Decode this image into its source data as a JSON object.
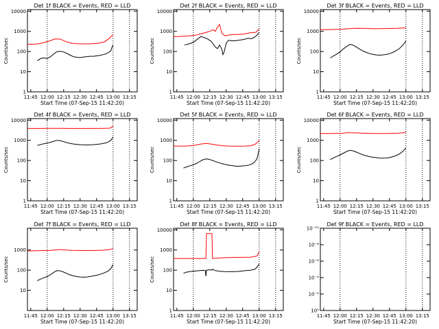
{
  "chart_data": [
    {
      "type": "line",
      "title": "Det 1f BLACK = Events, RED = LLD",
      "xlabel": "Start Time (07-Sep-15 11:42:20)",
      "ylabel": "Counts/sec",
      "xlim": [
        0,
        100
      ],
      "ylim": [
        1,
        12000
      ],
      "yscale": "log",
      "xticks": [
        3,
        18,
        33,
        48,
        63,
        78,
        93
      ],
      "xtick_labels": [
        "11:45",
        "12:00",
        "12:15",
        "12:30",
        "12:45",
        "13:00",
        "13:15"
      ],
      "yticks": [
        1,
        10,
        100,
        1000,
        10000
      ],
      "ytick_labels": [
        "1",
        "10",
        "100",
        "1000",
        "10000"
      ],
      "vlines": [
        18,
        78,
        93
      ],
      "series": [
        {
          "color": "#ff0000",
          "x": [
            0,
            5,
            10,
            15,
            20,
            25,
            30,
            35,
            40,
            45,
            50,
            55,
            60,
            65,
            70,
            74,
            76,
            78
          ],
          "y": [
            230,
            230,
            240,
            280,
            330,
            420,
            410,
            310,
            260,
            245,
            240,
            240,
            245,
            260,
            300,
            420,
            540,
            700
          ]
        },
        {
          "color": "#000000",
          "x": [
            9,
            12,
            15,
            18,
            21,
            24,
            27,
            30,
            33,
            36,
            39,
            42,
            45,
            48,
            51,
            54,
            57,
            60,
            63,
            66,
            69,
            72,
            74,
            76,
            77,
            78
          ],
          "y": [
            35,
            45,
            48,
            45,
            55,
            75,
            98,
            102,
            95,
            80,
            66,
            55,
            52,
            50,
            53,
            56,
            58,
            58,
            61,
            64,
            70,
            78,
            90,
            110,
            160,
            210
          ]
        }
      ]
    },
    {
      "type": "line",
      "title": "Det 2f BLACK = Events, RED = LLD",
      "xlabel": "Start Time (07-Sep-15 11:42:20)",
      "ylabel": "Counts/sec",
      "xlim": [
        0,
        100
      ],
      "ylim": [
        1,
        12000
      ],
      "yscale": "log",
      "xticks": [
        3,
        18,
        33,
        48,
        63,
        78,
        93
      ],
      "xtick_labels": [
        "11:45",
        "12:00",
        "12:15",
        "12:30",
        "12:45",
        "13:00",
        "13:15"
      ],
      "yticks": [
        1,
        10,
        100,
        1000,
        10000
      ],
      "ytick_labels": [
        "1",
        "10",
        "100",
        "1000",
        "10000"
      ],
      "vlines": [
        18,
        78,
        93
      ],
      "series": [
        {
          "color": "#ff0000",
          "x": [
            0,
            5,
            10,
            15,
            20,
            25,
            30,
            33,
            36,
            38,
            40,
            42,
            44,
            47,
            50,
            55,
            60,
            65,
            70,
            75,
            78
          ],
          "y": [
            550,
            560,
            580,
            600,
            650,
            750,
            900,
            1000,
            1200,
            1000,
            1600,
            2200,
            800,
            600,
            650,
            700,
            700,
            750,
            850,
            900,
            1300
          ]
        },
        {
          "color": "#000000",
          "x": [
            10,
            13,
            16,
            19,
            22,
            25,
            28,
            31,
            34,
            36,
            38,
            40,
            42,
            44,
            45,
            46,
            48,
            50,
            53,
            56,
            59,
            62,
            65,
            68,
            71,
            74,
            76,
            78
          ],
          "y": [
            210,
            230,
            260,
            310,
            420,
            560,
            490,
            420,
            330,
            240,
            170,
            140,
            210,
            130,
            70,
            90,
            260,
            360,
            340,
            340,
            360,
            380,
            410,
            450,
            430,
            520,
            650,
            900
          ]
        }
      ]
    },
    {
      "type": "line",
      "title": "Det 3f BLACK = Events, RED = LLD",
      "xlabel": "Start Time (07-Sep-15 11:42:20)",
      "ylabel": "Counts/sec",
      "xlim": [
        0,
        100
      ],
      "ylim": [
        1,
        12000
      ],
      "yscale": "log",
      "xticks": [
        3,
        18,
        33,
        48,
        63,
        78,
        93
      ],
      "xtick_labels": [
        "11:45",
        "12:00",
        "12:15",
        "12:30",
        "12:45",
        "13:00",
        "13:15"
      ],
      "yticks": [
        1,
        10,
        100,
        1000,
        10000
      ],
      "ytick_labels": [
        "1",
        "10",
        "100",
        "1000",
        "10000"
      ],
      "vlines": [
        18,
        78,
        93
      ],
      "series": [
        {
          "color": "#ff0000",
          "x": [
            0,
            10,
            20,
            25,
            30,
            35,
            40,
            50,
            60,
            70,
            78
          ],
          "y": [
            1200,
            1230,
            1280,
            1350,
            1400,
            1420,
            1400,
            1350,
            1380,
            1420,
            1500
          ]
        },
        {
          "color": "#000000",
          "x": [
            9,
            12,
            15,
            18,
            21,
            24,
            27,
            30,
            33,
            36,
            39,
            42,
            45,
            48,
            51,
            54,
            57,
            60,
            63,
            66,
            69,
            72,
            75,
            77,
            78
          ],
          "y": [
            48,
            60,
            75,
            95,
            135,
            180,
            225,
            205,
            165,
            130,
            105,
            90,
            78,
            72,
            68,
            66,
            68,
            72,
            78,
            90,
            110,
            140,
            200,
            280,
            350
          ]
        }
      ]
    },
    {
      "type": "line",
      "title": "Det 4f BLACK = Events, RED = LLD",
      "xlabel": "Start Time (07-Sep-15 11:42:20)",
      "ylabel": "Counts/sec",
      "xlim": [
        0,
        100
      ],
      "ylim": [
        1,
        12000
      ],
      "yscale": "log",
      "xticks": [
        3,
        18,
        33,
        48,
        63,
        78,
        93
      ],
      "xtick_labels": [
        "11:45",
        "12:00",
        "12:15",
        "12:30",
        "12:45",
        "13:00",
        "13:15"
      ],
      "yticks": [
        1,
        10,
        100,
        1000,
        10000
      ],
      "ytick_labels": [
        "1",
        "10",
        "100",
        "1000",
        "10000"
      ],
      "vlines": [
        18,
        78,
        93
      ],
      "series": [
        {
          "color": "#ff0000",
          "x": [
            0,
            10,
            20,
            30,
            40,
            50,
            60,
            70,
            75,
            77,
            78
          ],
          "y": [
            3900,
            3900,
            3950,
            3950,
            3900,
            3900,
            3900,
            3950,
            4000,
            4600,
            5200
          ]
        },
        {
          "color": "#000000",
          "x": [
            9,
            12,
            15,
            18,
            21,
            24,
            27,
            30,
            33,
            36,
            39,
            42,
            45,
            48,
            51,
            54,
            57,
            60,
            63,
            66,
            69,
            72,
            74,
            76,
            77,
            78
          ],
          "y": [
            560,
            620,
            680,
            730,
            800,
            900,
            1000,
            960,
            860,
            770,
            700,
            660,
            630,
            610,
            600,
            590,
            600,
            610,
            630,
            660,
            700,
            760,
            850,
            1000,
            1200,
            1500
          ]
        }
      ]
    },
    {
      "type": "line",
      "title": "Det 5f BLACK = Events, RED = LLD",
      "xlabel": "Start Time (07-Sep-15 11:42:20)",
      "ylabel": "Counts/sec",
      "xlim": [
        0,
        100
      ],
      "ylim": [
        1,
        12000
      ],
      "yscale": "log",
      "xticks": [
        3,
        18,
        33,
        48,
        63,
        78,
        93
      ],
      "xtick_labels": [
        "11:45",
        "12:00",
        "12:15",
        "12:30",
        "12:45",
        "13:00",
        "13:15"
      ],
      "yticks": [
        1,
        10,
        100,
        1000,
        10000
      ],
      "ytick_labels": [
        "1",
        "10",
        "100",
        "1000",
        "10000"
      ],
      "vlines": [
        18,
        78,
        93
      ],
      "series": [
        {
          "color": "#ff0000",
          "x": [
            0,
            5,
            10,
            15,
            20,
            25,
            30,
            35,
            40,
            45,
            50,
            55,
            60,
            65,
            70,
            74,
            76,
            78
          ],
          "y": [
            520,
            520,
            520,
            540,
            580,
            660,
            700,
            640,
            580,
            540,
            520,
            510,
            510,
            520,
            540,
            620,
            760,
            1000
          ]
        },
        {
          "color": "#000000",
          "x": [
            9,
            12,
            15,
            18,
            21,
            24,
            27,
            30,
            33,
            36,
            39,
            42,
            45,
            48,
            51,
            54,
            57,
            60,
            63,
            66,
            69,
            72,
            74,
            76,
            77,
            78
          ],
          "y": [
            42,
            48,
            55,
            62,
            72,
            90,
            110,
            120,
            112,
            98,
            85,
            75,
            68,
            62,
            58,
            55,
            52,
            52,
            54,
            56,
            60,
            70,
            85,
            120,
            200,
            380
          ]
        }
      ]
    },
    {
      "type": "line",
      "title": "Det 6f BLACK = Events, RED = LLD",
      "xlabel": "Start Time (07-Sep-15 11:42:20)",
      "ylabel": "Counts/sec",
      "xlim": [
        0,
        100
      ],
      "ylim": [
        1,
        12000
      ],
      "yscale": "log",
      "xticks": [
        3,
        18,
        33,
        48,
        63,
        78,
        93
      ],
      "xtick_labels": [
        "11:45",
        "12:00",
        "12:15",
        "12:30",
        "12:45",
        "13:00",
        "13:15"
      ],
      "yticks": [
        1,
        10,
        100,
        1000,
        10000
      ],
      "ytick_labels": [
        "1",
        "10",
        "100",
        "1000",
        "10000"
      ],
      "vlines": [
        18,
        78,
        93
      ],
      "series": [
        {
          "color": "#ff0000",
          "x": [
            0,
            10,
            20,
            25,
            30,
            40,
            50,
            60,
            70,
            76,
            78
          ],
          "y": [
            2200,
            2200,
            2250,
            2400,
            2350,
            2250,
            2200,
            2200,
            2250,
            2400,
            2600
          ]
        },
        {
          "color": "#000000",
          "x": [
            9,
            12,
            15,
            18,
            21,
            24,
            27,
            30,
            33,
            36,
            39,
            42,
            45,
            48,
            51,
            54,
            57,
            60,
            63,
            66,
            69,
            72,
            75,
            77,
            78
          ],
          "y": [
            110,
            135,
            160,
            190,
            230,
            280,
            320,
            300,
            260,
            220,
            190,
            170,
            155,
            145,
            138,
            132,
            130,
            132,
            140,
            155,
            175,
            210,
            280,
            360,
            440
          ]
        }
      ]
    },
    {
      "type": "line",
      "title": "Det 7f BLACK = Events, RED = LLD",
      "xlabel": "Start Time (07-Sep-15 11:42:20)",
      "ylabel": "Counts/sec",
      "xlim": [
        0,
        100
      ],
      "ylim": [
        1,
        12000
      ],
      "yscale": "log",
      "xticks": [
        3,
        18,
        33,
        48,
        63,
        78,
        93
      ],
      "xtick_labels": [
        "11:45",
        "12:00",
        "12:15",
        "12:30",
        "12:45",
        "13:00",
        "13:15"
      ],
      "yticks": [
        10,
        100,
        1000
      ],
      "ytick_labels": [
        "10",
        "100",
        "1000"
      ],
      "vlines": [
        18,
        78,
        93
      ],
      "series": [
        {
          "color": "#ff0000",
          "x": [
            0,
            10,
            20,
            25,
            30,
            35,
            40,
            50,
            60,
            70,
            76,
            78
          ],
          "y": [
            900,
            920,
            950,
            1000,
            1050,
            1000,
            960,
            940,
            940,
            980,
            1080,
            1200
          ]
        },
        {
          "color": "#000000",
          "x": [
            9,
            12,
            15,
            18,
            21,
            24,
            27,
            30,
            33,
            36,
            39,
            42,
            45,
            48,
            51,
            54,
            57,
            60,
            63,
            66,
            69,
            72,
            74,
            76,
            77,
            78
          ],
          "y": [
            30,
            36,
            42,
            48,
            60,
            78,
            95,
            92,
            80,
            68,
            58,
            52,
            48,
            46,
            45,
            46,
            48,
            52,
            56,
            62,
            70,
            82,
            95,
            120,
            150,
            190
          ]
        }
      ]
    },
    {
      "type": "line",
      "title": "Det 8f BLACK = Events, RED = LLD",
      "xlabel": "Start Time (07-Sep-15 11:42:20)",
      "ylabel": "Counts/sec",
      "xlim": [
        0,
        100
      ],
      "ylim": [
        1,
        12000
      ],
      "yscale": "log",
      "xticks": [
        3,
        18,
        33,
        48,
        63,
        78,
        93
      ],
      "xtick_labels": [
        "11:45",
        "12:00",
        "12:15",
        "12:30",
        "12:45",
        "13:00",
        "13:15"
      ],
      "yticks": [
        1,
        10,
        100,
        1000,
        10000
      ],
      "ytick_labels": [
        "1",
        "10",
        "100",
        "1000",
        "10000"
      ],
      "vlines": [
        18,
        78,
        93
      ],
      "series": [
        {
          "color": "#ff0000",
          "x": [
            0,
            10,
            20,
            25,
            29.5,
            30,
            35,
            35.5,
            40,
            50,
            60,
            70,
            76,
            78
          ],
          "y": [
            380,
            380,
            380,
            380,
            380,
            6500,
            6500,
            380,
            400,
            420,
            430,
            440,
            500,
            800
          ]
        },
        {
          "color": "#000000",
          "x": [
            9,
            12,
            15,
            18,
            21,
            24,
            27,
            29,
            29.5,
            30,
            33,
            35,
            35.5,
            38,
            42,
            46,
            50,
            54,
            58,
            62,
            66,
            70,
            74,
            76,
            78
          ],
          "y": [
            70,
            80,
            85,
            90,
            92,
            95,
            98,
            95,
            50,
            100,
            105,
            100,
            110,
            95,
            88,
            85,
            84,
            84,
            86,
            90,
            95,
            100,
            110,
            140,
            200
          ]
        }
      ]
    },
    {
      "type": "line",
      "title": "Det 9f BLACK = Events, RED = LLD",
      "xlabel": "Start Time (07-Sep-15 11:42:20)",
      "ylabel": "",
      "xlim": [
        0,
        100
      ],
      "ylim": [
        1,
        1e-10
      ],
      "yscale": "log",
      "xticks": [
        3,
        18,
        33,
        48,
        63,
        78,
        93
      ],
      "xtick_labels": [
        "11:45",
        "12:00",
        "12:15",
        "12:30",
        "12:45",
        "13:00",
        "13:15"
      ],
      "yticks": [
        1,
        0.01,
        0.0001,
        1e-06,
        1e-08,
        1e-10
      ],
      "ytick_labels": [
        "10⁰",
        "10⁻²",
        "10⁻⁴",
        "10⁻⁶",
        "10⁻⁸",
        "10⁻¹⁰"
      ],
      "vlines": [
        18,
        78,
        93
      ],
      "series": []
    }
  ]
}
